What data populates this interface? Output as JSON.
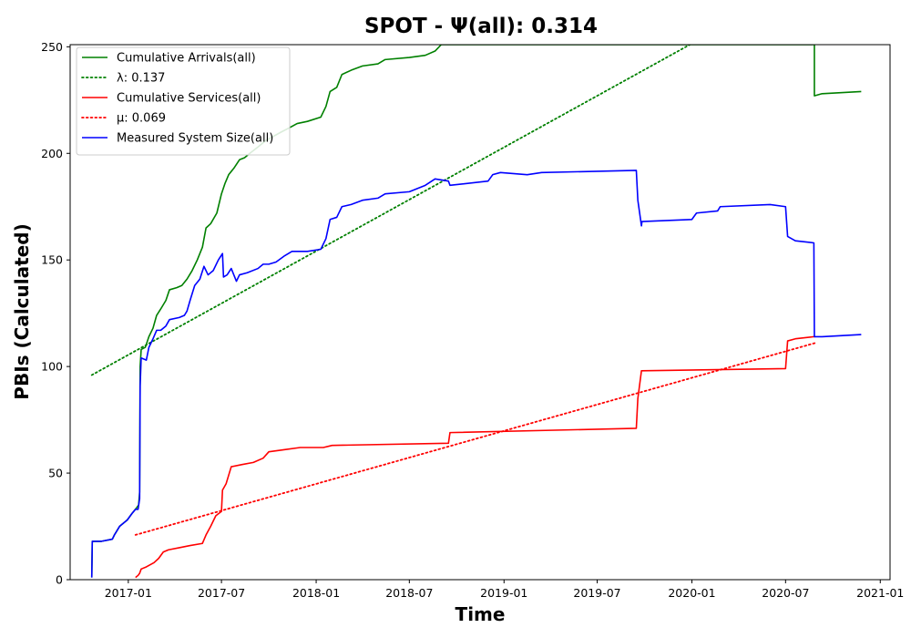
{
  "chart_data": {
    "type": "line",
    "title": "SPOT -  Ψ(all): 0.314",
    "xlabel": "Time",
    "ylabel": "PBIs (Calculated)",
    "xlim": [
      "2016-09-10",
      "2021-01-20"
    ],
    "ylim": [
      0,
      251
    ],
    "x_ticks": [
      "2017-01",
      "2017-07",
      "2018-01",
      "2018-07",
      "2019-01",
      "2019-07",
      "2020-01",
      "2020-07",
      "2021-01"
    ],
    "y_ticks": [
      0,
      50,
      100,
      150,
      200,
      250
    ],
    "grid": false,
    "legend_position": "top-left",
    "series": [
      {
        "name": "Cumulative Arrivals(all)",
        "color": "#008000",
        "style": "solid",
        "points": [
          [
            "2016-10-22",
            1
          ],
          [
            "2016-10-23",
            18
          ],
          [
            "2016-11-10",
            18
          ],
          [
            "2016-12-01",
            19
          ],
          [
            "2016-12-05",
            21
          ],
          [
            "2016-12-15",
            25
          ],
          [
            "2016-12-30",
            28
          ],
          [
            "2017-01-08",
            31
          ],
          [
            "2017-01-18",
            34
          ],
          [
            "2017-01-21",
            35
          ],
          [
            "2017-01-23",
            41
          ],
          [
            "2017-01-24",
            100
          ],
          [
            "2017-01-26",
            108
          ],
          [
            "2017-02-03",
            109
          ],
          [
            "2017-02-10",
            114
          ],
          [
            "2017-02-18",
            118
          ],
          [
            "2017-02-25",
            124
          ],
          [
            "2017-03-05",
            127
          ],
          [
            "2017-03-15",
            131
          ],
          [
            "2017-03-22",
            136
          ],
          [
            "2017-04-05",
            137
          ],
          [
            "2017-04-15",
            138
          ],
          [
            "2017-04-25",
            141
          ],
          [
            "2017-05-05",
            145
          ],
          [
            "2017-05-15",
            150
          ],
          [
            "2017-05-25",
            156
          ],
          [
            "2017-06-01",
            165
          ],
          [
            "2017-06-10",
            167
          ],
          [
            "2017-06-22",
            172
          ],
          [
            "2017-07-01",
            181
          ],
          [
            "2017-07-08",
            186
          ],
          [
            "2017-07-15",
            190
          ],
          [
            "2017-07-25",
            193
          ],
          [
            "2017-08-05",
            197
          ],
          [
            "2017-08-15",
            198
          ],
          [
            "2017-08-25",
            200
          ],
          [
            "2017-09-10",
            203
          ],
          [
            "2017-09-25",
            206
          ],
          [
            "2017-10-10",
            208
          ],
          [
            "2017-10-25",
            210
          ],
          [
            "2017-11-10",
            212
          ],
          [
            "2017-11-25",
            214
          ],
          [
            "2017-12-15",
            215
          ],
          [
            "2018-01-10",
            217
          ],
          [
            "2018-01-20",
            222
          ],
          [
            "2018-01-28",
            229
          ],
          [
            "2018-02-10",
            231
          ],
          [
            "2018-02-20",
            237
          ],
          [
            "2018-03-10",
            239
          ],
          [
            "2018-04-01",
            241
          ],
          [
            "2018-05-01",
            242
          ],
          [
            "2018-05-15",
            244
          ],
          [
            "2018-07-01",
            245
          ],
          [
            "2018-08-01",
            246
          ],
          [
            "2018-08-20",
            248
          ],
          [
            "2018-09-01",
            251
          ],
          [
            "2020-08-24",
            251
          ]
        ]
      },
      {
        "name": "Cumulative Arrivals(all)",
        "color": "#008000",
        "style": "solid",
        "points": [
          [
            "2020-08-26",
            251
          ],
          [
            "2020-08-26",
            227
          ],
          [
            "2020-09-10",
            228
          ],
          [
            "2020-11-25",
            229
          ]
        ]
      },
      {
        "name": "λ: 0.137",
        "color": "#008000",
        "style": "dotted",
        "points": [
          [
            "2016-10-22",
            96
          ],
          [
            "2019-12-28",
            251
          ]
        ]
      },
      {
        "name": "Cumulative Services(all)",
        "color": "#ff0000",
        "style": "solid",
        "points": [
          [
            "2017-01-15",
            1
          ],
          [
            "2017-01-20",
            2
          ],
          [
            "2017-01-23",
            3
          ],
          [
            "2017-01-26",
            5
          ],
          [
            "2017-02-05",
            6
          ],
          [
            "2017-02-20",
            8
          ],
          [
            "2017-03-01",
            10
          ],
          [
            "2017-03-10",
            13
          ],
          [
            "2017-03-20",
            14
          ],
          [
            "2017-04-10",
            15
          ],
          [
            "2017-05-01",
            16
          ],
          [
            "2017-05-25",
            17
          ],
          [
            "2017-06-01",
            21
          ],
          [
            "2017-06-10",
            25
          ],
          [
            "2017-06-20",
            30
          ],
          [
            "2017-07-01",
            32
          ],
          [
            "2017-07-03",
            42
          ],
          [
            "2017-07-10",
            45
          ],
          [
            "2017-07-20",
            53
          ],
          [
            "2017-08-10",
            54
          ],
          [
            "2017-09-01",
            55
          ],
          [
            "2017-09-20",
            57
          ],
          [
            "2017-10-01",
            60
          ],
          [
            "2017-11-01",
            61
          ],
          [
            "2017-12-01",
            62
          ],
          [
            "2018-01-15",
            62
          ],
          [
            "2018-02-01",
            63
          ],
          [
            "2018-09-15",
            64
          ],
          [
            "2018-09-18",
            69
          ],
          [
            "2019-09-15",
            71
          ],
          [
            "2019-09-18",
            85
          ],
          [
            "2019-09-25",
            98
          ],
          [
            "2020-07-01",
            99
          ],
          [
            "2020-07-05",
            112
          ],
          [
            "2020-07-20",
            113
          ],
          [
            "2020-08-25",
            114
          ],
          [
            "2020-08-27",
            114
          ]
        ]
      },
      {
        "name": "μ: 0.069",
        "color": "#ff0000",
        "style": "dotted",
        "points": [
          [
            "2017-01-15",
            21
          ],
          [
            "2020-08-27",
            111
          ]
        ]
      },
      {
        "name": "Measured System Size(all)",
        "color": "#0000ff",
        "style": "solid",
        "points": [
          [
            "2016-10-22",
            1
          ],
          [
            "2016-10-23",
            18
          ],
          [
            "2016-11-10",
            18
          ],
          [
            "2016-12-01",
            19
          ],
          [
            "2016-12-05",
            21
          ],
          [
            "2016-12-15",
            25
          ],
          [
            "2016-12-30",
            28
          ],
          [
            "2017-01-08",
            31
          ],
          [
            "2017-01-15",
            33
          ],
          [
            "2017-01-20",
            33
          ],
          [
            "2017-01-23",
            38
          ],
          [
            "2017-01-24",
            91
          ],
          [
            "2017-01-26",
            104
          ],
          [
            "2017-02-05",
            103
          ],
          [
            "2017-02-10",
            109
          ],
          [
            "2017-02-18",
            113
          ],
          [
            "2017-02-25",
            117
          ],
          [
            "2017-03-05",
            117
          ],
          [
            "2017-03-15",
            119
          ],
          [
            "2017-03-22",
            122
          ],
          [
            "2017-04-10",
            123
          ],
          [
            "2017-04-20",
            124
          ],
          [
            "2017-04-25",
            126
          ],
          [
            "2017-05-01",
            131
          ],
          [
            "2017-05-10",
            138
          ],
          [
            "2017-05-20",
            141
          ],
          [
            "2017-05-28",
            147
          ],
          [
            "2017-06-05",
            143
          ],
          [
            "2017-06-15",
            145
          ],
          [
            "2017-06-25",
            150
          ],
          [
            "2017-07-03",
            153
          ],
          [
            "2017-07-05",
            142
          ],
          [
            "2017-07-12",
            143
          ],
          [
            "2017-07-20",
            146
          ],
          [
            "2017-07-30",
            140
          ],
          [
            "2017-08-05",
            143
          ],
          [
            "2017-08-20",
            144
          ],
          [
            "2017-09-10",
            146
          ],
          [
            "2017-09-20",
            148
          ],
          [
            "2017-10-01",
            148
          ],
          [
            "2017-10-15",
            149
          ],
          [
            "2017-11-01",
            152
          ],
          [
            "2017-11-15",
            154
          ],
          [
            "2017-12-15",
            154
          ],
          [
            "2018-01-10",
            155
          ],
          [
            "2018-01-20",
            160
          ],
          [
            "2018-01-28",
            169
          ],
          [
            "2018-02-10",
            170
          ],
          [
            "2018-02-20",
            175
          ],
          [
            "2018-03-10",
            176
          ],
          [
            "2018-04-01",
            178
          ],
          [
            "2018-05-01",
            179
          ],
          [
            "2018-05-15",
            181
          ],
          [
            "2018-07-01",
            182
          ],
          [
            "2018-08-01",
            185
          ],
          [
            "2018-08-20",
            188
          ],
          [
            "2018-09-15",
            187
          ],
          [
            "2018-09-18",
            185
          ],
          [
            "2018-12-01",
            187
          ],
          [
            "2018-12-10",
            190
          ],
          [
            "2018-12-25",
            191
          ],
          [
            "2019-02-15",
            190
          ],
          [
            "2019-03-15",
            191
          ],
          [
            "2019-09-15",
            192
          ],
          [
            "2019-09-18",
            178
          ],
          [
            "2019-09-25",
            166
          ],
          [
            "2019-09-26",
            168
          ],
          [
            "2020-01-01",
            169
          ],
          [
            "2020-01-10",
            172
          ],
          [
            "2020-02-20",
            173
          ],
          [
            "2020-02-25",
            175
          ],
          [
            "2020-06-01",
            176
          ],
          [
            "2020-07-01",
            175
          ],
          [
            "2020-07-05",
            161
          ],
          [
            "2020-07-20",
            159
          ],
          [
            "2020-08-25",
            158
          ],
          [
            "2020-08-26",
            114
          ],
          [
            "2020-09-10",
            114
          ],
          [
            "2020-11-25",
            115
          ]
        ]
      }
    ]
  }
}
